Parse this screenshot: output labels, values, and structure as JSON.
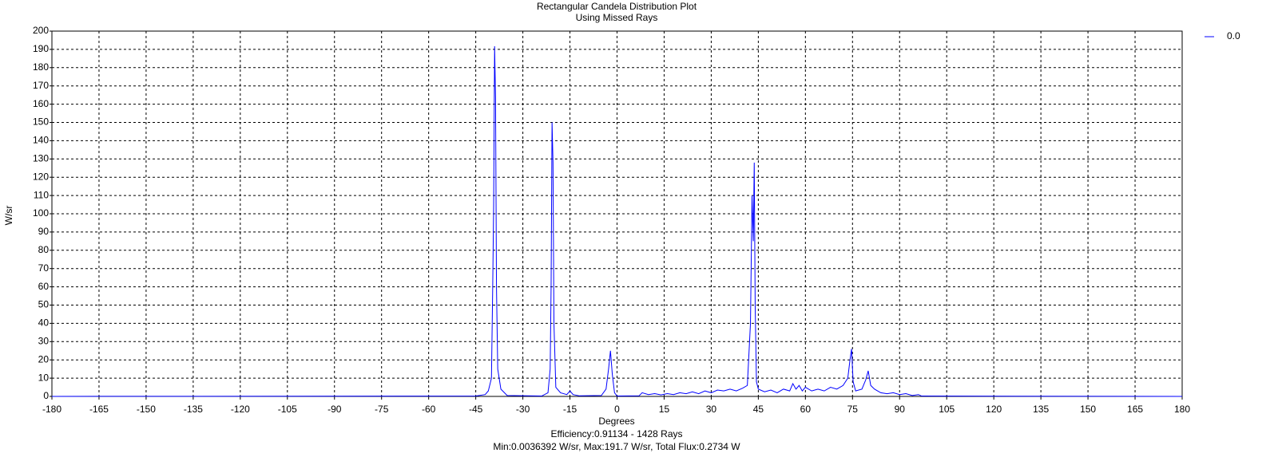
{
  "chart_data": {
    "type": "line",
    "title": "Rectangular Candela Distribution Plot",
    "subtitle": "Using Missed Rays",
    "x_label": "Degrees",
    "y_label": "W/sr",
    "annotations": [
      "Efficiency:0.91134 - 1428 Rays",
      "Min:0.0036392 W/sr, Max:191.7 W/sr, Total Flux:0.2734 W"
    ],
    "xlim": [
      -180,
      180
    ],
    "xticks": [
      -180,
      -165,
      -150,
      -135,
      -120,
      -105,
      -90,
      -75,
      -60,
      -45,
      -30,
      -15,
      0,
      15,
      30,
      45,
      60,
      75,
      90,
      105,
      120,
      135,
      150,
      165,
      180
    ],
    "ylim": [
      0,
      200
    ],
    "yticks": [
      0,
      10,
      20,
      30,
      40,
      50,
      60,
      70,
      80,
      90,
      100,
      110,
      120,
      130,
      140,
      150,
      160,
      170,
      180,
      190,
      200
    ],
    "grid": true,
    "legend": "top-right",
    "x": [
      -180,
      -45,
      -42,
      -41,
      -40,
      -39.6,
      -39.3,
      -39,
      -38.7,
      -38.4,
      -38,
      -37,
      -35,
      -24,
      -22,
      -21.3,
      -21,
      -20.7,
      -20.4,
      -20.1,
      -19.5,
      -18,
      -16,
      -15,
      -14,
      -12,
      -5,
      -3.5,
      -2.7,
      -2.1,
      -1.5,
      -0.8,
      0,
      7,
      8,
      10,
      12,
      14,
      16,
      18,
      20,
      22,
      24,
      26,
      28,
      30,
      32,
      34,
      36,
      38,
      40,
      41.5,
      42.5,
      43,
      43.4,
      43.7,
      44,
      44.4,
      45,
      47,
      49,
      51,
      53,
      55,
      56,
      57,
      58,
      59,
      60,
      62,
      64,
      66,
      68,
      70,
      72,
      73.5,
      74.2,
      74.7,
      75.2,
      76,
      78,
      79.2,
      80,
      80.8,
      82,
      84,
      86,
      88,
      90,
      92,
      94,
      96,
      97,
      180
    ],
    "series": [
      {
        "name": "0.0",
        "color": "#0000ff",
        "values": [
          0.0036,
          0.2,
          1,
          3,
          10,
          60,
          105,
          191.7,
          163,
          60,
          15,
          4,
          0.5,
          0.2,
          2,
          15,
          60,
          150,
          128,
          40,
          5,
          2,
          1,
          3,
          1,
          0.3,
          0.5,
          4,
          15,
          25,
          12,
          2,
          0.2,
          0.3,
          2,
          1,
          1.5,
          0.8,
          1.5,
          1,
          2,
          1.5,
          2.5,
          1.5,
          3,
          2,
          3.5,
          3,
          4,
          3,
          4.5,
          6,
          40,
          110,
          85,
          128,
          50,
          8,
          4,
          2.5,
          3.5,
          2,
          4,
          3,
          7,
          4,
          6,
          3,
          5,
          3,
          4,
          3,
          5,
          4,
          6,
          10,
          20,
          26,
          8,
          3,
          4,
          9,
          14,
          6,
          4,
          2,
          1.5,
          2,
          1,
          1.5,
          0.5,
          1,
          0.2,
          0.0036
        ]
      }
    ]
  }
}
